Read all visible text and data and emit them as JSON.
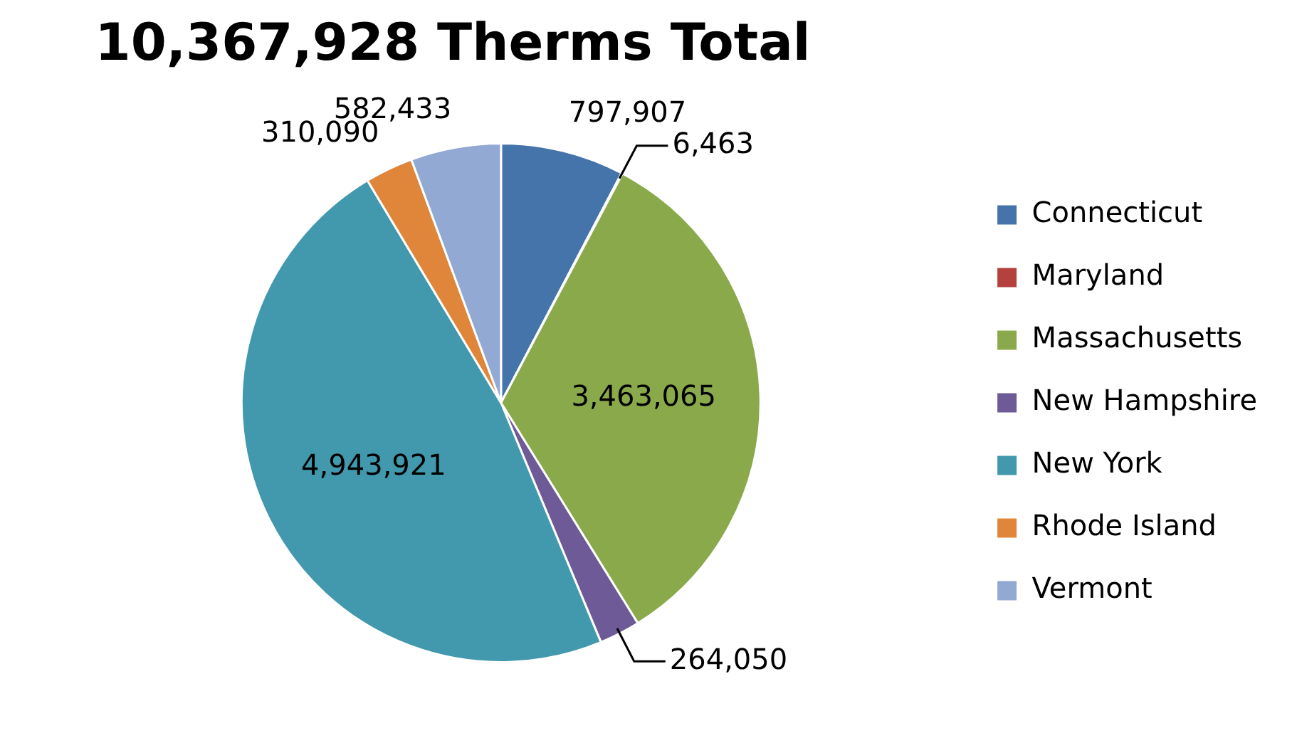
{
  "chart_data": {
    "type": "pie",
    "title": "10,367,928 Therms Total",
    "categories": [
      "Connecticut",
      "Maryland",
      "Massachusetts",
      "New Hampshire",
      "New York",
      "Rhode Island",
      "Vermont"
    ],
    "values": [
      797907,
      6463,
      3463065,
      264050,
      4943921,
      310090,
      582433
    ],
    "value_labels": [
      "797,907",
      "6,463",
      "3,463,065",
      "264,050",
      "4,943,921",
      "310,090",
      "582,433"
    ],
    "colors": [
      "#4474aa",
      "#b5413e",
      "#8aa94b",
      "#6e5a96",
      "#4298ad",
      "#e0863a",
      "#92a9d3"
    ],
    "legend": "right"
  }
}
